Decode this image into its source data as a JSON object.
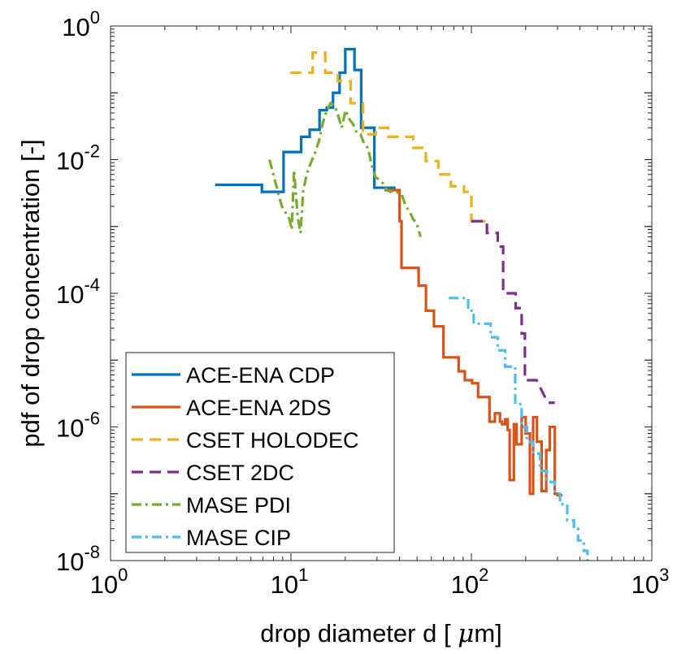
{
  "chart_data": {
    "type": "line",
    "xlabel": "drop diameter d [ μm]",
    "xlabel_prefix": "drop diameter d [ ",
    "xlabel_mu": "μ",
    "xlabel_suffix": "m]",
    "ylabel": "pdf of drop concentration [-]",
    "xscale": "log",
    "yscale": "log",
    "xlim": [
      1,
      1000
    ],
    "ylim": [
      1e-08,
      1
    ],
    "x_ticks": [
      {
        "value": 1,
        "base": "10",
        "exp": "0"
      },
      {
        "value": 10,
        "base": "10",
        "exp": "1"
      },
      {
        "value": 100,
        "base": "10",
        "exp": "2"
      },
      {
        "value": 1000,
        "base": "10",
        "exp": "3"
      }
    ],
    "y_ticks": [
      {
        "value": 1e-08,
        "base": "10",
        "exp": "-8"
      },
      {
        "value": 1e-06,
        "base": "10",
        "exp": "-6"
      },
      {
        "value": 0.0001,
        "base": "10",
        "exp": "-4"
      },
      {
        "value": 0.01,
        "base": "10",
        "exp": "-2"
      },
      {
        "value": 1,
        "base": "10",
        "exp": "0"
      }
    ],
    "legend_position": "bottom-left",
    "series": [
      {
        "name": "ACE-ENA CDP",
        "color": "#0072BD",
        "dash": "solid",
        "step": true,
        "points": [
          [
            3.8,
            0.0042
          ],
          [
            6.9,
            0.0042
          ],
          [
            6.9,
            0.0033
          ],
          [
            9.1,
            0.0033
          ],
          [
            9.1,
            0.013
          ],
          [
            11.4,
            0.013
          ],
          [
            11.4,
            0.022
          ],
          [
            12.7,
            0.022
          ],
          [
            12.7,
            0.028
          ],
          [
            14.4,
            0.028
          ],
          [
            14.4,
            0.055
          ],
          [
            15.8,
            0.055
          ],
          [
            15.8,
            0.06
          ],
          [
            17.1,
            0.06
          ],
          [
            17.1,
            0.1
          ],
          [
            18.6,
            0.1
          ],
          [
            18.6,
            0.2
          ],
          [
            20.0,
            0.2
          ],
          [
            20.0,
            0.45
          ],
          [
            22.5,
            0.45
          ],
          [
            22.5,
            0.22
          ],
          [
            24.5,
            0.22
          ],
          [
            24.5,
            0.03
          ],
          [
            29.0,
            0.03
          ],
          [
            29.0,
            0.0038
          ],
          [
            38.0,
            0.0038
          ]
        ]
      },
      {
        "name": "ACE-ENA 2DS",
        "color": "#D95319",
        "dash": "solid",
        "step": true,
        "points": [
          [
            33,
            0.0035
          ],
          [
            40,
            0.0035
          ],
          [
            40,
            0.0012
          ],
          [
            41,
            0.0012
          ],
          [
            41,
            0.00024
          ],
          [
            51,
            0.00024
          ],
          [
            51,
            0.00013
          ],
          [
            56,
            0.00013
          ],
          [
            56,
            5.5e-05
          ],
          [
            62,
            5.5e-05
          ],
          [
            62,
            3.2e-05
          ],
          [
            70,
            3.2e-05
          ],
          [
            70,
            1.1e-05
          ],
          [
            85,
            1.1e-05
          ],
          [
            85,
            6.8e-06
          ],
          [
            92,
            6.8e-06
          ],
          [
            92,
            5e-06
          ],
          [
            101,
            5e-06
          ],
          [
            101,
            4.5e-06
          ],
          [
            109,
            4.5e-06
          ],
          [
            109,
            2.8e-06
          ],
          [
            126,
            2.8e-06
          ],
          [
            126,
            1.2e-06
          ],
          [
            135,
            1.2e-06
          ],
          [
            135,
            1.6e-06
          ],
          [
            144,
            1.6e-06
          ],
          [
            144,
            1.2e-06
          ],
          [
            148,
            1.2e-06
          ],
          [
            148,
            1.1e-06
          ],
          [
            154,
            1.1e-06
          ],
          [
            154,
            1.3e-06
          ],
          [
            159,
            1.3e-06
          ],
          [
            159,
            9e-07
          ],
          [
            163,
            9e-07
          ],
          [
            163,
            1.6e-07
          ],
          [
            172,
            1.6e-07
          ],
          [
            172,
            1.1e-06
          ],
          [
            178,
            1.1e-06
          ],
          [
            178,
            5.5e-07
          ],
          [
            190,
            5.5e-07
          ],
          [
            190,
            1.4e-06
          ],
          [
            200,
            1.4e-06
          ],
          [
            200,
            8e-07
          ],
          [
            211,
            8e-07
          ],
          [
            211,
            1e-07
          ],
          [
            220,
            1e-07
          ],
          [
            220,
            1.4e-06
          ],
          [
            231,
            1.4e-06
          ],
          [
            231,
            6e-07
          ],
          [
            245,
            6e-07
          ],
          [
            245,
            1.1e-07
          ],
          [
            260,
            1.1e-07
          ],
          [
            260,
            4.5e-07
          ],
          [
            272,
            4.5e-07
          ],
          [
            272,
            1e-06
          ],
          [
            290,
            1e-06
          ],
          [
            290,
            1e-07
          ],
          [
            300,
            1e-07
          ],
          [
            300,
            9.5e-08
          ],
          [
            320,
            9.5e-08
          ]
        ]
      },
      {
        "name": "CSET HOLODEC",
        "color": "#EDB120",
        "dash": "dashed",
        "step": true,
        "points": [
          [
            9.9,
            0.2
          ],
          [
            13.2,
            0.2
          ],
          [
            13.2,
            0.4
          ],
          [
            15.5,
            0.4
          ],
          [
            15.5,
            0.2
          ],
          [
            18.2,
            0.2
          ],
          [
            18.2,
            0.15
          ],
          [
            21.4,
            0.15
          ],
          [
            21.4,
            0.07
          ],
          [
            25.1,
            0.07
          ],
          [
            25.1,
            0.024
          ],
          [
            29.5,
            0.024
          ],
          [
            29.5,
            0.03
          ],
          [
            34.6,
            0.03
          ],
          [
            34.6,
            0.022
          ],
          [
            40.6,
            0.022
          ],
          [
            40.6,
            0.022
          ],
          [
            47.6,
            0.022
          ],
          [
            47.6,
            0.015
          ],
          [
            55.9,
            0.015
          ],
          [
            55.9,
            0.0095
          ],
          [
            65.6,
            0.0095
          ],
          [
            65.6,
            0.006
          ],
          [
            77.0,
            0.006
          ],
          [
            77.0,
            0.004
          ],
          [
            91.0,
            0.004
          ],
          [
            91.0,
            0.0033
          ],
          [
            100,
            0.0033
          ],
          [
            100,
            0.0012
          ],
          [
            120,
            0.0012
          ]
        ]
      },
      {
        "name": "CSET 2DC",
        "color": "#7E2F8E",
        "dash": "dashed",
        "step": true,
        "points": [
          [
            100,
            0.0012
          ],
          [
            122,
            0.0012
          ],
          [
            122,
            0.0008
          ],
          [
            140,
            0.0008
          ],
          [
            140,
            0.0005
          ],
          [
            150,
            0.0005
          ],
          [
            150,
            0.0001
          ],
          [
            176,
            0.0001
          ],
          [
            176,
            6e-05
          ],
          [
            190,
            6e-05
          ],
          [
            190,
            2.5e-05
          ],
          [
            198,
            2.5e-05
          ],
          [
            198,
            5e-06
          ],
          [
            230,
            5e-06
          ],
          [
            265,
            2.3e-06
          ],
          [
            290,
            2.3e-06
          ]
        ]
      },
      {
        "name": "MASE PDI",
        "color": "#77AC30",
        "dash": "dashdot",
        "step": false,
        "points": [
          [
            7.6,
            0.01
          ],
          [
            8.9,
            0.002
          ],
          [
            9.8,
            0.0013
          ],
          [
            10.1,
            0.0009
          ],
          [
            10.4,
            0.007
          ],
          [
            10.9,
            0.0014
          ],
          [
            11.3,
            0.0008
          ],
          [
            11.7,
            0.0035
          ],
          [
            12.3,
            0.0064
          ],
          [
            12.9,
            0.009
          ],
          [
            13.5,
            0.012
          ],
          [
            14.3,
            0.019
          ],
          [
            15.0,
            0.035
          ],
          [
            15.8,
            0.055
          ],
          [
            16.6,
            0.07
          ],
          [
            17.4,
            0.065
          ],
          [
            18.3,
            0.045
          ],
          [
            19.1,
            0.03
          ],
          [
            20.1,
            0.055
          ],
          [
            21.1,
            0.04
          ],
          [
            22.1,
            0.034
          ],
          [
            23.2,
            0.025
          ],
          [
            24.3,
            0.024
          ],
          [
            25.5,
            0.017
          ],
          [
            26.7,
            0.015
          ],
          [
            28.1,
            0.008
          ],
          [
            29.4,
            0.0055
          ],
          [
            30.8,
            0.005
          ],
          [
            32.4,
            0.0044
          ],
          [
            34.0,
            0.0035
          ],
          [
            35.6,
            0.0033
          ],
          [
            37.4,
            0.0035
          ],
          [
            39.2,
            0.0032
          ],
          [
            41.2,
            0.003
          ],
          [
            43.2,
            0.002
          ],
          [
            45.3,
            0.0017
          ],
          [
            47.5,
            0.0013
          ],
          [
            49.8,
            0.0011
          ],
          [
            52.3,
            0.0007
          ]
        ]
      },
      {
        "name": "MASE CIP",
        "color": "#4DBEEE",
        "dash": "dashdot",
        "step": true,
        "points": [
          [
            75,
            8.5e-05
          ],
          [
            96,
            8.5e-05
          ],
          [
            96,
            5.5e-05
          ],
          [
            103,
            5.5e-05
          ],
          [
            103,
            3.5e-05
          ],
          [
            128,
            3.5e-05
          ],
          [
            128,
            2.2e-05
          ],
          [
            140,
            2.2e-05
          ],
          [
            140,
            1.4e-05
          ],
          [
            154,
            1.4e-05
          ],
          [
            154,
            8e-06
          ],
          [
            175,
            8e-06
          ],
          [
            175,
            2.2e-06
          ],
          [
            190,
            2.2e-06
          ],
          [
            190,
            1e-06
          ],
          [
            203,
            1e-06
          ],
          [
            203,
            6e-07
          ],
          [
            220,
            6e-07
          ],
          [
            220,
            4e-07
          ],
          [
            240,
            4e-07
          ],
          [
            240,
            2.2e-07
          ],
          [
            262,
            2.2e-07
          ],
          [
            262,
            1.5e-07
          ],
          [
            290,
            1.5e-07
          ],
          [
            290,
            1e-07
          ],
          [
            310,
            1e-07
          ],
          [
            310,
            7e-08
          ],
          [
            340,
            7e-08
          ],
          [
            340,
            4e-08
          ],
          [
            370,
            4e-08
          ],
          [
            370,
            3e-08
          ],
          [
            390,
            3e-08
          ],
          [
            390,
            2e-08
          ],
          [
            420,
            2e-08
          ],
          [
            420,
            1.4e-08
          ],
          [
            440,
            1.4e-08
          ],
          [
            440,
            1e-08
          ],
          [
            460,
            1e-08
          ]
        ]
      }
    ]
  }
}
